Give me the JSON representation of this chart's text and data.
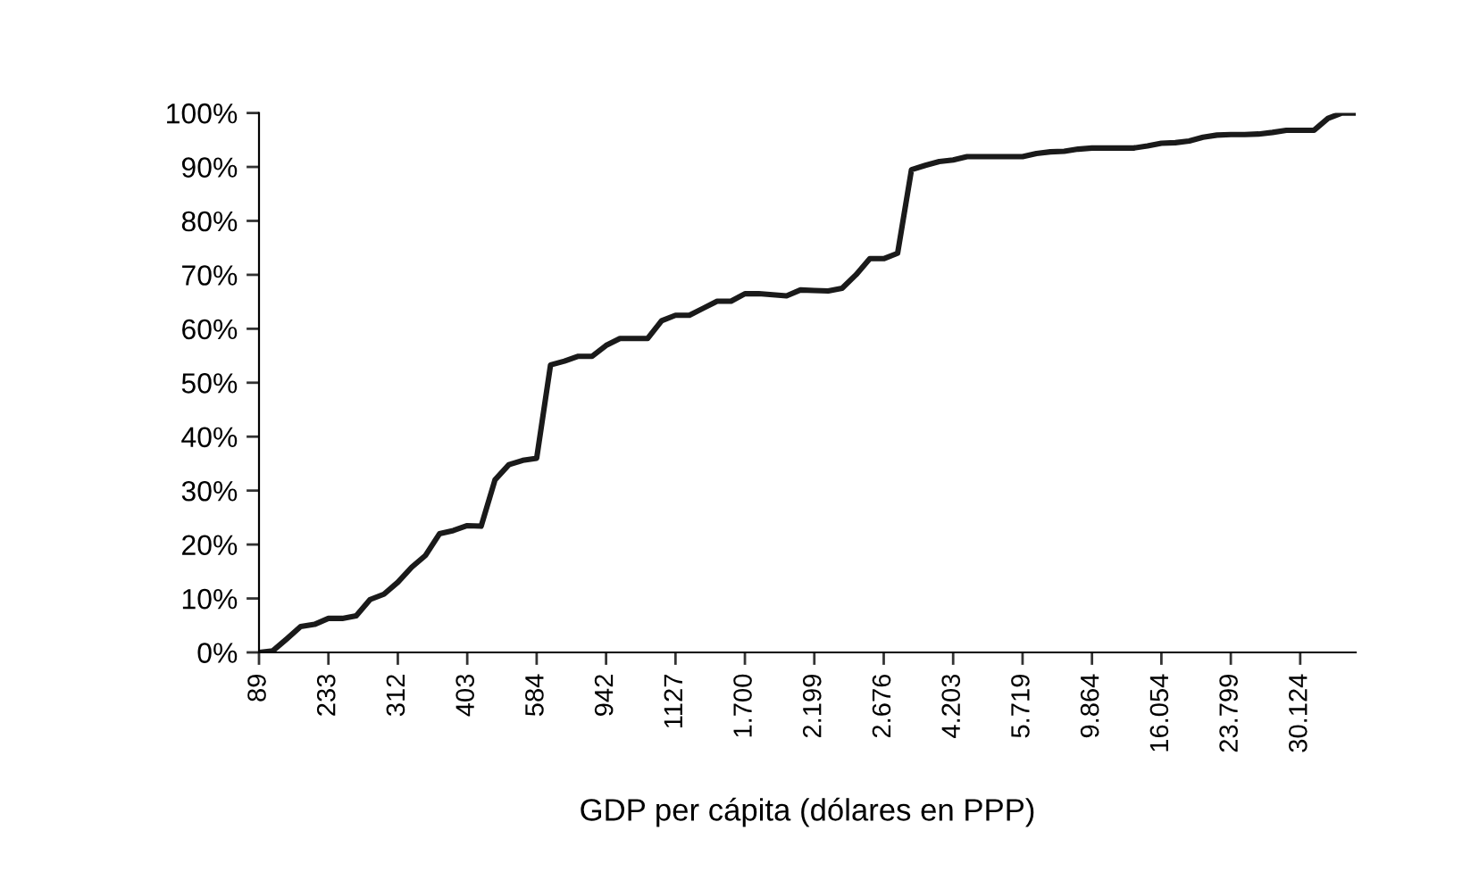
{
  "chart_data": {
    "type": "line",
    "xlabel": "GDP per cápita (dólares en PPP)",
    "categories": [
      "89",
      null,
      null,
      null,
      null,
      "233",
      null,
      null,
      null,
      null,
      "312",
      null,
      null,
      null,
      null,
      "403",
      null,
      null,
      null,
      null,
      "584",
      null,
      null,
      null,
      null,
      "942",
      null,
      null,
      null,
      null,
      "1127",
      null,
      null,
      null,
      null,
      "1.700",
      null,
      null,
      null,
      null,
      "2.199",
      null,
      null,
      null,
      null,
      "2.676",
      null,
      null,
      null,
      null,
      "4.203",
      null,
      null,
      null,
      null,
      "5.719",
      null,
      null,
      null,
      null,
      "9.864",
      null,
      null,
      null,
      null,
      "16.054",
      null,
      null,
      null,
      null,
      "23.799",
      null,
      null,
      null,
      null,
      "30.124",
      null,
      null,
      null,
      null
    ],
    "series": [
      {
        "color": "#1a1a1a",
        "values": [
          0,
          0.3,
          2.5,
          4.8,
          5.2,
          6.3,
          6.3,
          6.8,
          9.8,
          10.8,
          13,
          15.8,
          18,
          22,
          22.6,
          23.5,
          23.4,
          32,
          34.8,
          35.6,
          36,
          53.3,
          54,
          54.9,
          54.9,
          56.9,
          58.2,
          58.2,
          58.2,
          61.5,
          62.5,
          62.5,
          63.8,
          65.1,
          65.1,
          66.5,
          66.5,
          66.3,
          66.1,
          67.2,
          67.1,
          67,
          67.5,
          70,
          73,
          73,
          74,
          89.5,
          90.3,
          91,
          91.3,
          91.9,
          91.9,
          91.9,
          91.9,
          91.9,
          92.5,
          92.8,
          92.9,
          93.3,
          93.5,
          93.5,
          93.5,
          93.5,
          93.9,
          94.4,
          94.5,
          94.8,
          95.5,
          95.9,
          96,
          96,
          96.1,
          96.4,
          96.8,
          96.8,
          96.8,
          99,
          100,
          100
        ]
      }
    ],
    "ylim": [
      0,
      100
    ],
    "yticks": [
      {
        "value": 0,
        "label": "0%"
      },
      {
        "value": 10,
        "label": "10%"
      },
      {
        "value": 20,
        "label": "20%"
      },
      {
        "value": 30,
        "label": "30%"
      },
      {
        "value": 40,
        "label": "40%"
      },
      {
        "value": 50,
        "label": "50%"
      },
      {
        "value": 60,
        "label": "60%"
      },
      {
        "value": 70,
        "label": "70%"
      },
      {
        "value": 80,
        "label": "80%"
      },
      {
        "value": 90,
        "label": "90%"
      },
      {
        "value": 100,
        "label": "100%"
      }
    ],
    "grid": false,
    "legend": false,
    "marker": "none",
    "line_style": "solid"
  }
}
